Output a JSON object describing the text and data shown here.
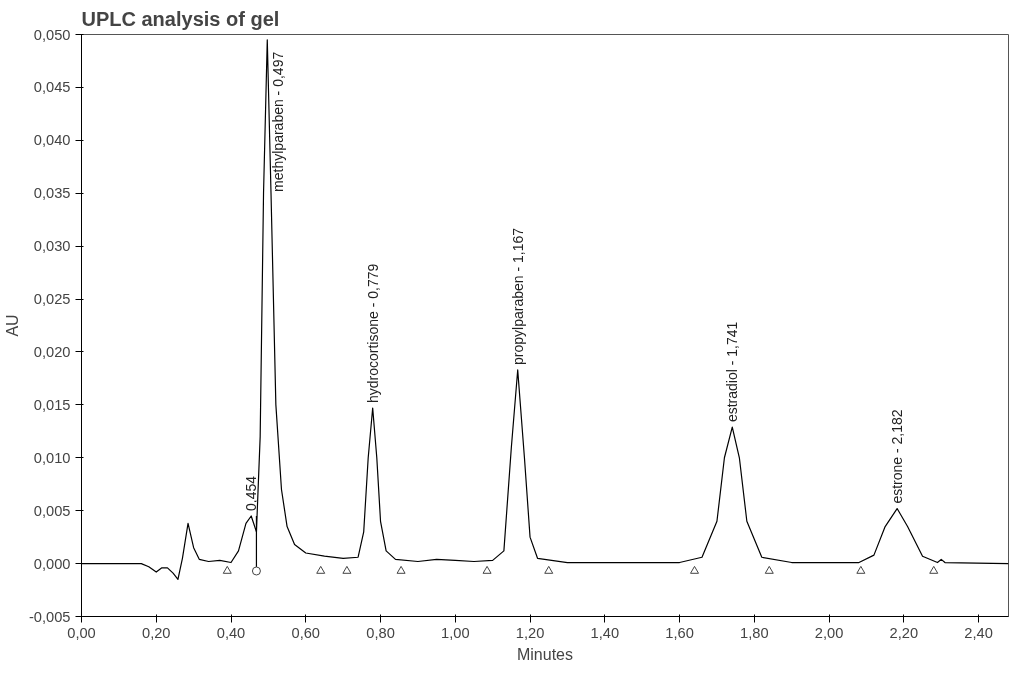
{
  "chart_data": {
    "type": "line",
    "title": "UPLC analysis of gel",
    "xlabel": "Minutes",
    "ylabel": "AU",
    "xlim": [
      0,
      2.48
    ],
    "ylim": [
      -0.005,
      0.05
    ],
    "xticks": [
      {
        "value": 0,
        "label": "0,00"
      },
      {
        "value": 0.2,
        "label": "0,20"
      },
      {
        "value": 0.4,
        "label": "0,40"
      },
      {
        "value": 0.6,
        "label": "0,60"
      },
      {
        "value": 0.8,
        "label": "0,80"
      },
      {
        "value": 1.0,
        "label": "1,00"
      },
      {
        "value": 1.2,
        "label": "1,20"
      },
      {
        "value": 1.4,
        "label": "1,40"
      },
      {
        "value": 1.6,
        "label": "1,60"
      },
      {
        "value": 1.8,
        "label": "1,80"
      },
      {
        "value": 2.0,
        "label": "2,00"
      },
      {
        "value": 2.2,
        "label": "2,20"
      },
      {
        "value": 2.4,
        "label": "2,40"
      }
    ],
    "yticks": [
      {
        "value": -0.005,
        "label": "-0,005"
      },
      {
        "value": 0,
        "label": "0,000"
      },
      {
        "value": 0.005,
        "label": "0,005"
      },
      {
        "value": 0.01,
        "label": "0,010"
      },
      {
        "value": 0.015,
        "label": "0,015"
      },
      {
        "value": 0.02,
        "label": "0,020"
      },
      {
        "value": 0.025,
        "label": "0,025"
      },
      {
        "value": 0.03,
        "label": "0,030"
      },
      {
        "value": 0.035,
        "label": "0,035"
      },
      {
        "value": 0.04,
        "label": "0,040"
      },
      {
        "value": 0.045,
        "label": "0,045"
      },
      {
        "value": 0.05,
        "label": "0,050"
      }
    ],
    "grid": false,
    "series": [
      {
        "color": "#000000",
        "x": [
          0.0,
          0.13,
          0.16,
          0.18,
          0.2,
          0.215,
          0.23,
          0.245,
          0.258,
          0.27,
          0.285,
          0.3,
          0.315,
          0.34,
          0.37,
          0.4,
          0.42,
          0.44,
          0.454,
          0.468,
          0.478,
          0.487,
          0.497,
          0.507,
          0.52,
          0.535,
          0.55,
          0.57,
          0.6,
          0.65,
          0.7,
          0.74,
          0.755,
          0.767,
          0.779,
          0.79,
          0.8,
          0.815,
          0.84,
          0.9,
          0.95,
          1.0,
          1.05,
          1.1,
          1.13,
          1.15,
          1.167,
          1.185,
          1.2,
          1.22,
          1.3,
          1.6,
          1.66,
          1.7,
          1.72,
          1.741,
          1.76,
          1.78,
          1.82,
          1.9,
          2.08,
          2.12,
          2.15,
          2.182,
          2.21,
          2.25,
          2.29,
          2.3,
          2.31,
          2.48
        ],
        "values": [
          0.0,
          0.0,
          0.0,
          -0.0003,
          -0.0008,
          -0.0004,
          -0.0004,
          -0.0009,
          -0.0015,
          0.0005,
          0.0038,
          0.0015,
          0.0004,
          0.0002,
          0.0003,
          0.0001,
          0.0012,
          0.0038,
          0.0045,
          0.003,
          0.012,
          0.035,
          0.0495,
          0.035,
          0.015,
          0.007,
          0.0035,
          0.0018,
          0.001,
          0.0007,
          0.0005,
          0.0006,
          0.003,
          0.01,
          0.0147,
          0.01,
          0.004,
          0.0012,
          0.0004,
          0.0002,
          0.0004,
          0.0003,
          0.0002,
          0.0003,
          0.0012,
          0.011,
          0.0183,
          0.01,
          0.0025,
          0.0005,
          0.0001,
          0.0001,
          0.0006,
          0.004,
          0.01,
          0.0129,
          0.01,
          0.004,
          0.0006,
          0.0001,
          0.0001,
          0.0008,
          0.0035,
          0.0052,
          0.0035,
          0.0007,
          0.0001,
          0.0004,
          0.0001,
          0.0
        ]
      },
      {
        "color": "#000000",
        "x": [
          0.468,
          0.468
        ],
        "values": [
          -0.0005,
          0.0045
        ]
      },
      {
        "type": "scatter",
        "marker": "triangle",
        "color": "#444444",
        "x": [
          0.39,
          0.64,
          0.71,
          0.855,
          1.085,
          1.25,
          1.64,
          1.84,
          2.085,
          2.28
        ],
        "values": [
          -0.0007,
          -0.0007,
          -0.0007,
          -0.0007,
          -0.0007,
          -0.0007,
          -0.0007,
          -0.0007,
          -0.0007,
          -0.0007
        ]
      },
      {
        "type": "scatter",
        "marker": "circle",
        "color": "#444444",
        "x": [
          0.468
        ],
        "values": [
          -0.0007
        ]
      }
    ],
    "annotations": [
      {
        "text": "0,454",
        "x": 0.454,
        "y": 0.0045
      },
      {
        "text": "methylparaben - 0,497",
        "x": 0.497,
        "y": 0.0495
      },
      {
        "text": "hydrocortisone - 0,779",
        "x": 0.779,
        "y": 0.0147
      },
      {
        "text": "propylparaben - 1,167",
        "x": 1.167,
        "y": 0.0183
      },
      {
        "text": "estradiol - 1,741",
        "x": 1.741,
        "y": 0.0129
      },
      {
        "text": "estrone - 2,182",
        "x": 2.182,
        "y": 0.0052
      }
    ]
  }
}
